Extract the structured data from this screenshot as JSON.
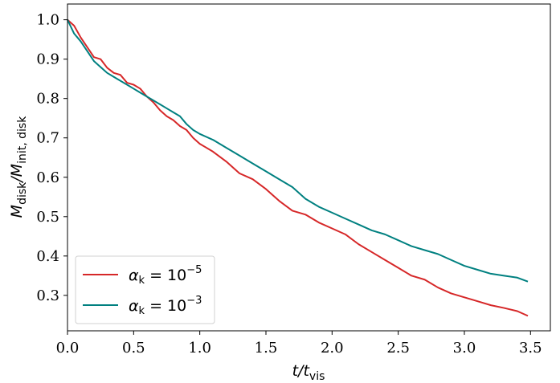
{
  "chart_data": {
    "type": "line",
    "xlabel": {
      "base": "t/t",
      "sub": "vis"
    },
    "ylabel": {
      "base": "M",
      "sub1": "disk",
      "mid": "/M",
      "sub2": "init, disk"
    },
    "xlim": [
      0.0,
      3.65
    ],
    "ylim": [
      0.21,
      1.04
    ],
    "xticks": [
      "0.0",
      "0.5",
      "1.0",
      "1.5",
      "2.0",
      "2.5",
      "3.0",
      "3.5"
    ],
    "yticks": [
      "0.3",
      "0.4",
      "0.5",
      "0.6",
      "0.7",
      "0.8",
      "0.9",
      "1.0"
    ],
    "grid": false,
    "legend_position": "lower-left",
    "series": [
      {
        "name": "α_k = 10^-5",
        "legend": {
          "sym": "α",
          "sub": "k",
          "eq": " = 10",
          "exp": "−5"
        },
        "color": "#d62728",
        "x": [
          0.0,
          0.05,
          0.1,
          0.15,
          0.2,
          0.25,
          0.3,
          0.35,
          0.4,
          0.45,
          0.5,
          0.55,
          0.6,
          0.65,
          0.7,
          0.75,
          0.8,
          0.85,
          0.9,
          0.95,
          1.0,
          1.1,
          1.2,
          1.3,
          1.4,
          1.5,
          1.6,
          1.7,
          1.8,
          1.9,
          2.0,
          2.1,
          2.2,
          2.3,
          2.4,
          2.5,
          2.6,
          2.7,
          2.8,
          2.9,
          3.0,
          3.1,
          3.2,
          3.3,
          3.4,
          3.48
        ],
        "y": [
          1.0,
          0.985,
          0.955,
          0.93,
          0.905,
          0.9,
          0.878,
          0.865,
          0.86,
          0.84,
          0.835,
          0.825,
          0.805,
          0.79,
          0.77,
          0.755,
          0.745,
          0.73,
          0.72,
          0.7,
          0.685,
          0.665,
          0.64,
          0.61,
          0.595,
          0.57,
          0.54,
          0.515,
          0.505,
          0.485,
          0.47,
          0.455,
          0.43,
          0.41,
          0.39,
          0.37,
          0.35,
          0.34,
          0.32,
          0.305,
          0.295,
          0.285,
          0.275,
          0.268,
          0.26,
          0.248
        ]
      },
      {
        "name": "α_k = 10^-3",
        "legend": {
          "sym": "α",
          "sub": "k",
          "eq": " = 10",
          "exp": "−3"
        },
        "color": "#008080",
        "x": [
          0.0,
          0.05,
          0.1,
          0.15,
          0.2,
          0.25,
          0.3,
          0.35,
          0.4,
          0.45,
          0.5,
          0.55,
          0.6,
          0.65,
          0.7,
          0.75,
          0.8,
          0.85,
          0.9,
          0.95,
          1.0,
          1.1,
          1.2,
          1.3,
          1.4,
          1.5,
          1.6,
          1.7,
          1.8,
          1.9,
          2.0,
          2.1,
          2.2,
          2.3,
          2.4,
          2.5,
          2.6,
          2.7,
          2.8,
          2.9,
          3.0,
          3.1,
          3.2,
          3.3,
          3.4,
          3.48
        ],
        "y": [
          1.0,
          0.965,
          0.945,
          0.92,
          0.895,
          0.88,
          0.865,
          0.855,
          0.845,
          0.835,
          0.825,
          0.815,
          0.805,
          0.795,
          0.785,
          0.775,
          0.765,
          0.755,
          0.735,
          0.72,
          0.71,
          0.695,
          0.675,
          0.655,
          0.635,
          0.615,
          0.595,
          0.575,
          0.545,
          0.525,
          0.51,
          0.495,
          0.48,
          0.465,
          0.455,
          0.44,
          0.425,
          0.415,
          0.405,
          0.39,
          0.375,
          0.365,
          0.355,
          0.35,
          0.345,
          0.335
        ]
      }
    ]
  }
}
